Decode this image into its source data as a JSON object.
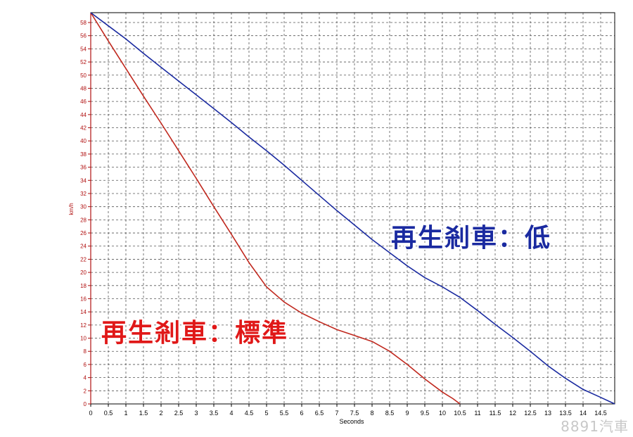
{
  "chart_data": {
    "type": "line",
    "xlabel": "Seconds",
    "ylabel": "km/h",
    "xlim": [
      0,
      14.9
    ],
    "ylim": [
      0,
      59.5
    ],
    "x_ticks": [
      "0",
      "0.5",
      "1",
      "1.5",
      "2",
      "2.5",
      "3",
      "3.5",
      "4",
      "4.5",
      "5",
      "5.5",
      "6",
      "6.5",
      "7",
      "7.5",
      "8",
      "8.5",
      "9",
      "9.5",
      "10",
      "10.5",
      "11",
      "11.5",
      "12",
      "12.5",
      "13",
      "13.5",
      "14",
      "14.5"
    ],
    "y_ticks": [
      "0",
      "2",
      "4",
      "6",
      "8",
      "10",
      "12",
      "14",
      "16",
      "18",
      "20",
      "22",
      "24",
      "26",
      "28",
      "30",
      "32",
      "34",
      "36",
      "38",
      "40",
      "42",
      "44",
      "46",
      "48",
      "50",
      "52",
      "54",
      "56",
      "58"
    ],
    "grid": true,
    "series": [
      {
        "name": "再生剎車：標準",
        "color": "#c0281e",
        "x": [
          0,
          0.5,
          1,
          1.5,
          2,
          2.5,
          3,
          3.5,
          4,
          4.5,
          5,
          5.5,
          6,
          6.5,
          7,
          7.5,
          8,
          8.5,
          9,
          9.5,
          10,
          10.3,
          10.5
        ],
        "y": [
          59.5,
          55.2,
          51,
          46.8,
          42.7,
          38.5,
          34.3,
          30,
          25.8,
          21.5,
          17.8,
          15.5,
          13.8,
          12.5,
          11.3,
          10.4,
          9.5,
          8,
          6,
          3.8,
          1.8,
          0.8,
          0
        ]
      },
      {
        "name": "再生剎車：低",
        "color": "#1a2aa0",
        "x": [
          0,
          0.5,
          1,
          1.5,
          2,
          2.5,
          3,
          3.5,
          4,
          4.5,
          5,
          5.5,
          6,
          6.5,
          7,
          7.5,
          8,
          8.5,
          9,
          9.5,
          10,
          10.5,
          11,
          11.5,
          12,
          12.5,
          13,
          13.5,
          14,
          14.5,
          14.9
        ],
        "y": [
          59.5,
          57.5,
          55.5,
          53.3,
          51.2,
          49.1,
          47,
          44.9,
          42.8,
          40.6,
          38.5,
          36.3,
          34,
          31.7,
          29.4,
          27.2,
          25,
          23,
          21,
          19.2,
          17.8,
          16.2,
          14.2,
          12.1,
          10.1,
          8,
          5.8,
          3.9,
          2.2,
          1,
          0
        ]
      }
    ]
  },
  "annotations": {
    "low_label": "再生剎車：低",
    "standard_label": "再生剎車：標準",
    "low_color": "#1a2aa0",
    "standard_color": "#e01818"
  },
  "watermark": "8891汽車"
}
